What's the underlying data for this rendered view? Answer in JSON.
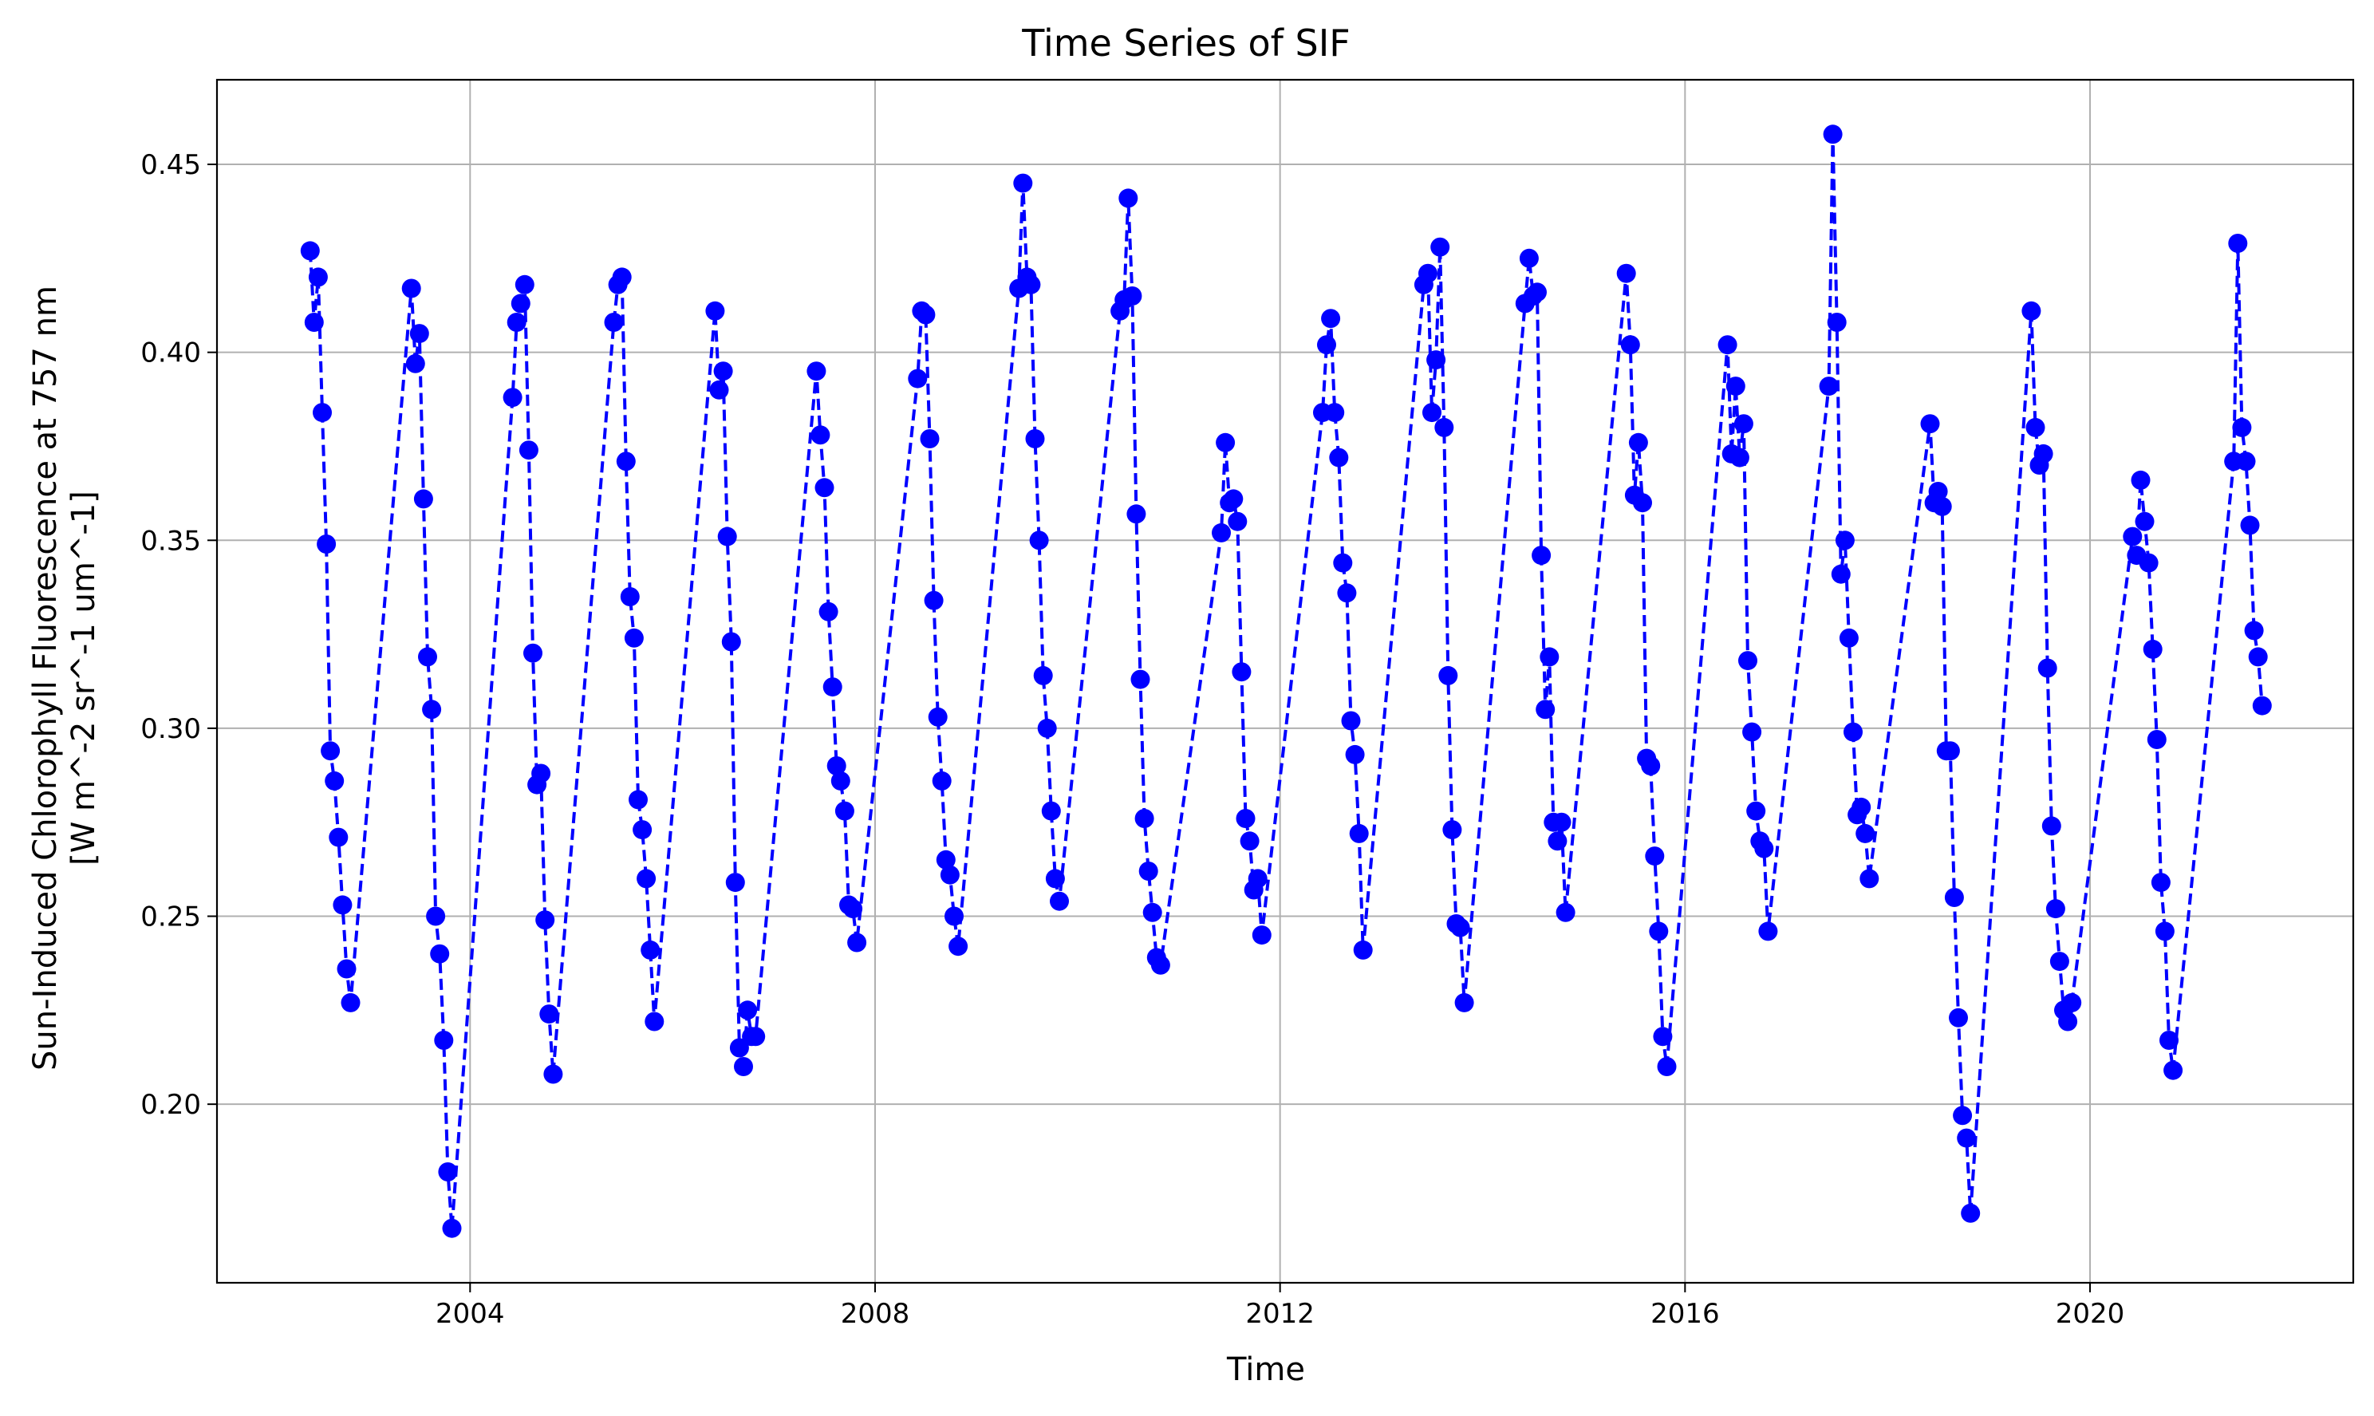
{
  "chart_data": {
    "type": "line",
    "title": "Time Series of SIF",
    "xlabel": "Time",
    "ylabel_lines": [
      "Sun-Induced Chlorophyll Fluorescence at 757 nm",
      "[W m^-2 sr^-1 um^-1]"
    ],
    "x_ticks": [
      2004,
      2008,
      2012,
      2016,
      2020
    ],
    "x_tick_labels": [
      "2004",
      "2008",
      "2012",
      "2016",
      "2020"
    ],
    "y_ticks": [
      0.2,
      0.25,
      0.3,
      0.35,
      0.4,
      0.45
    ],
    "y_tick_labels": [
      "0.20",
      "0.25",
      "0.30",
      "0.35",
      "0.40",
      "0.45"
    ],
    "xlim": [
      2001.5,
      2022.6
    ],
    "ylim": [
      0.1525,
      0.4725
    ],
    "grid": true,
    "marker": "circle",
    "line_style": "dashed",
    "color": "#0000ff",
    "series": [
      {
        "x": [
          2002.42,
          2002.46,
          2002.5,
          2002.54,
          2002.58,
          2002.62,
          2002.66,
          2002.7,
          2002.74,
          2002.78,
          2002.82,
          2003.42,
          2003.46,
          2003.5,
          2003.54,
          2003.58,
          2003.62,
          2003.66,
          2003.7,
          2003.74,
          2003.78,
          2003.82,
          2004.42,
          2004.46,
          2004.5,
          2004.54,
          2004.58,
          2004.62,
          2004.66,
          2004.7,
          2004.74,
          2004.78,
          2004.82,
          2005.42,
          2005.46,
          2005.5,
          2005.54,
          2005.58,
          2005.62,
          2005.66,
          2005.7,
          2005.74,
          2005.78,
          2005.82,
          2006.42,
          2006.46,
          2006.5,
          2006.54,
          2006.58,
          2006.62,
          2006.66,
          2006.7,
          2006.74,
          2006.78,
          2006.82,
          2007.42,
          2007.46,
          2007.5,
          2007.54,
          2007.58,
          2007.62,
          2007.66,
          2007.7,
          2007.74,
          2007.78,
          2007.82,
          2008.42,
          2008.46,
          2008.5,
          2008.54,
          2008.58,
          2008.62,
          2008.66,
          2008.7,
          2008.74,
          2008.78,
          2008.82,
          2009.42,
          2009.46,
          2009.5,
          2009.54,
          2009.58,
          2009.62,
          2009.66,
          2009.7,
          2009.74,
          2009.78,
          2009.82,
          2010.42,
          2010.46,
          2010.5,
          2010.54,
          2010.58,
          2010.62,
          2010.66,
          2010.7,
          2010.74,
          2010.78,
          2010.82,
          2011.42,
          2011.46,
          2011.5,
          2011.54,
          2011.58,
          2011.62,
          2011.66,
          2011.7,
          2011.74,
          2011.78,
          2011.82,
          2012.42,
          2012.46,
          2012.5,
          2012.54,
          2012.58,
          2012.62,
          2012.66,
          2012.7,
          2012.74,
          2012.78,
          2012.82,
          2013.42,
          2013.46,
          2013.5,
          2013.54,
          2013.58,
          2013.62,
          2013.66,
          2013.7,
          2013.74,
          2013.78,
          2013.82,
          2014.42,
          2014.46,
          2014.5,
          2014.54,
          2014.58,
          2014.62,
          2014.66,
          2014.7,
          2014.74,
          2014.78,
          2014.82,
          2015.42,
          2015.46,
          2015.5,
          2015.54,
          2015.58,
          2015.62,
          2015.66,
          2015.7,
          2015.74,
          2015.78,
          2015.82,
          2016.42,
          2016.46,
          2016.5,
          2016.54,
          2016.58,
          2016.62,
          2016.66,
          2016.7,
          2016.74,
          2016.78,
          2016.82,
          2017.42,
          2017.46,
          2017.5,
          2017.54,
          2017.58,
          2017.62,
          2017.66,
          2017.7,
          2017.74,
          2017.78,
          2017.82,
          2018.42,
          2018.46,
          2018.5,
          2018.54,
          2018.58,
          2018.62,
          2018.66,
          2018.7,
          2018.74,
          2018.78,
          2018.82,
          2019.42,
          2019.46,
          2019.5,
          2019.54,
          2019.58,
          2019.62,
          2019.66,
          2019.7,
          2019.74,
          2019.78,
          2019.82,
          2020.42,
          2020.46,
          2020.5,
          2020.54,
          2020.58,
          2020.62,
          2020.66,
          2020.7,
          2020.74,
          2020.78,
          2020.82,
          2021.42,
          2021.46,
          2021.5,
          2021.54,
          2021.58,
          2021.62,
          2021.66,
          2021.7
        ],
        "y": [
          0.427,
          0.408,
          0.42,
          0.384,
          0.349,
          0.294,
          0.286,
          0.271,
          0.253,
          0.236,
          0.227,
          0.417,
          0.397,
          0.405,
          0.361,
          0.319,
          0.305,
          0.25,
          0.24,
          0.217,
          0.182,
          0.167,
          0.388,
          0.408,
          0.413,
          0.418,
          0.374,
          0.32,
          0.285,
          0.288,
          0.249,
          0.224,
          0.208,
          0.408,
          0.418,
          0.42,
          0.371,
          0.335,
          0.324,
          0.281,
          0.273,
          0.26,
          0.241,
          0.222,
          0.411,
          0.39,
          0.395,
          0.351,
          0.323,
          0.259,
          0.215,
          0.21,
          0.225,
          0.218,
          0.218,
          0.395,
          0.378,
          0.364,
          0.331,
          0.311,
          0.29,
          0.286,
          0.278,
          0.253,
          0.252,
          0.243,
          0.393,
          0.411,
          0.41,
          0.377,
          0.334,
          0.303,
          0.286,
          0.265,
          0.261,
          0.25,
          0.242,
          0.417,
          0.445,
          0.42,
          0.418,
          0.377,
          0.35,
          0.314,
          0.3,
          0.278,
          0.26,
          0.254,
          0.411,
          0.414,
          0.441,
          0.415,
          0.357,
          0.313,
          0.276,
          0.262,
          0.251,
          0.239,
          0.237,
          0.352,
          0.376,
          0.36,
          0.361,
          0.355,
          0.315,
          0.276,
          0.27,
          0.257,
          0.26,
          0.245,
          0.384,
          0.402,
          0.409,
          0.384,
          0.372,
          0.344,
          0.336,
          0.302,
          0.293,
          0.272,
          0.241,
          0.418,
          0.421,
          0.384,
          0.398,
          0.428,
          0.38,
          0.314,
          0.273,
          0.248,
          0.247,
          0.227,
          0.413,
          0.425,
          0.415,
          0.416,
          0.346,
          0.305,
          0.319,
          0.275,
          0.27,
          0.275,
          0.251,
          0.421,
          0.402,
          0.362,
          0.376,
          0.36,
          0.292,
          0.29,
          0.266,
          0.246,
          0.218,
          0.21,
          0.402,
          0.373,
          0.391,
          0.372,
          0.381,
          0.318,
          0.299,
          0.278,
          0.27,
          0.268,
          0.246,
          0.391,
          0.458,
          0.408,
          0.341,
          0.35,
          0.324,
          0.299,
          0.277,
          0.279,
          0.272,
          0.26,
          0.381,
          0.36,
          0.363,
          0.359,
          0.294,
          0.294,
          0.255,
          0.223,
          0.197,
          0.191,
          0.171,
          0.411,
          0.38,
          0.37,
          0.373,
          0.316,
          0.274,
          0.252,
          0.238,
          0.225,
          0.222,
          0.227,
          0.351,
          0.346,
          0.366,
          0.355,
          0.344,
          0.321,
          0.297,
          0.259,
          0.246,
          0.217,
          0.209,
          0.371,
          0.429,
          0.38,
          0.371,
          0.354,
          0.326,
          0.319,
          0.306
        ]
      }
    ]
  }
}
